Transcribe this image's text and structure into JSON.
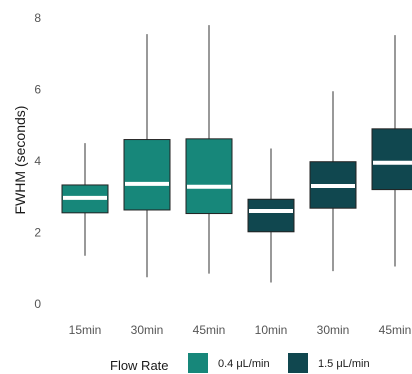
{
  "chart_data": {
    "type": "box",
    "ylabel": "FWHM (seconds)",
    "xlabel": "",
    "ylim": [
      0,
      8
    ],
    "yticks": [
      0,
      2,
      4,
      6,
      8
    ],
    "grid": false,
    "legend": {
      "title": "Flow Rate",
      "placement": "bottom",
      "entries": [
        {
          "label": "0.4 μL/min",
          "color": "#17877a"
        },
        {
          "label": "1.5 μL/min",
          "color": "#10474f"
        }
      ]
    },
    "boxes": [
      {
        "category": "15min",
        "group": "0.4 μL/min",
        "whisker_low": 1.35,
        "q1": 2.55,
        "median": 2.97,
        "q3": 3.33,
        "whisker_high": 4.5
      },
      {
        "category": "30min",
        "group": "0.4 μL/min",
        "whisker_low": 0.75,
        "q1": 2.63,
        "median": 3.36,
        "q3": 4.6,
        "whisker_high": 7.55
      },
      {
        "category": "45min",
        "group": "0.4 μL/min",
        "whisker_low": 0.85,
        "q1": 2.53,
        "median": 3.28,
        "q3": 4.62,
        "whisker_high": 7.8
      },
      {
        "category": "10min",
        "group": "1.5 μL/min",
        "whisker_low": 0.6,
        "q1": 2.02,
        "median": 2.6,
        "q3": 2.93,
        "whisker_high": 4.35
      },
      {
        "category": "30min",
        "group": "1.5 μL/min",
        "whisker_low": 0.92,
        "q1": 2.68,
        "median": 3.3,
        "q3": 3.98,
        "whisker_high": 5.95
      },
      {
        "category": "45min",
        "group": "1.5 μL/min",
        "whisker_low": 1.05,
        "q1": 3.2,
        "median": 3.95,
        "q3": 4.9,
        "whisker_high": 7.52
      }
    ]
  }
}
